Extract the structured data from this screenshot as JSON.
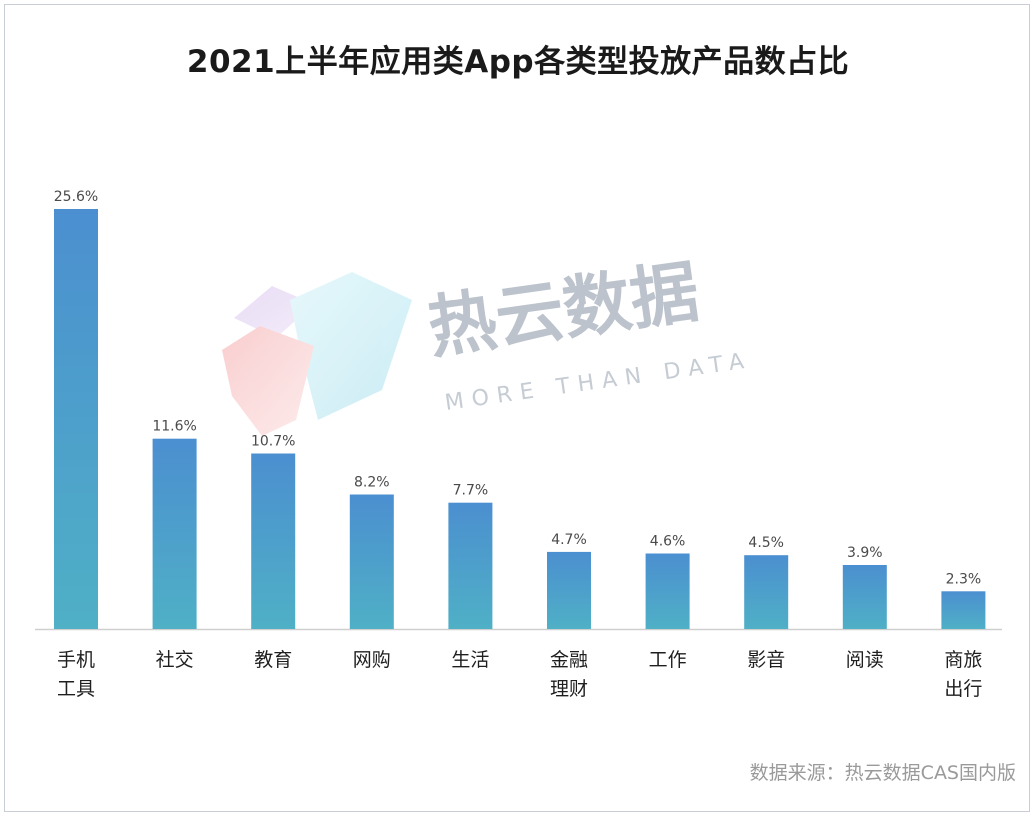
{
  "chart_data": {
    "type": "bar",
    "title": "2021上半年应用类App各类型投放产品数占比",
    "categories": [
      [
        "手机",
        "工具"
      ],
      [
        "社交"
      ],
      [
        "教育"
      ],
      [
        "网购"
      ],
      [
        "生活"
      ],
      [
        "金融",
        "理财"
      ],
      [
        "工作"
      ],
      [
        "影音"
      ],
      [
        "阅读"
      ],
      [
        "商旅",
        "出行"
      ]
    ],
    "values": [
      25.6,
      11.6,
      10.7,
      8.2,
      7.7,
      4.7,
      4.6,
      4.5,
      3.9,
      2.3
    ],
    "value_labels": [
      "25.6%",
      "11.6%",
      "10.7%",
      "8.2%",
      "7.7%",
      "4.7%",
      "4.6%",
      "4.5%",
      "3.9%",
      "2.3%"
    ],
    "xlabel": "",
    "ylabel": "",
    "ylim": [
      0,
      25.6
    ],
    "grid": false,
    "colors": {
      "bar_top": "#4b8fd0",
      "bar_bottom": "#4fb0c6",
      "axis": "#cfcfcf"
    }
  },
  "watermark": {
    "text_cn": "热云数据",
    "text_en": "MORE THAN DATA"
  },
  "source": "数据来源：热云数据CAS国内版"
}
